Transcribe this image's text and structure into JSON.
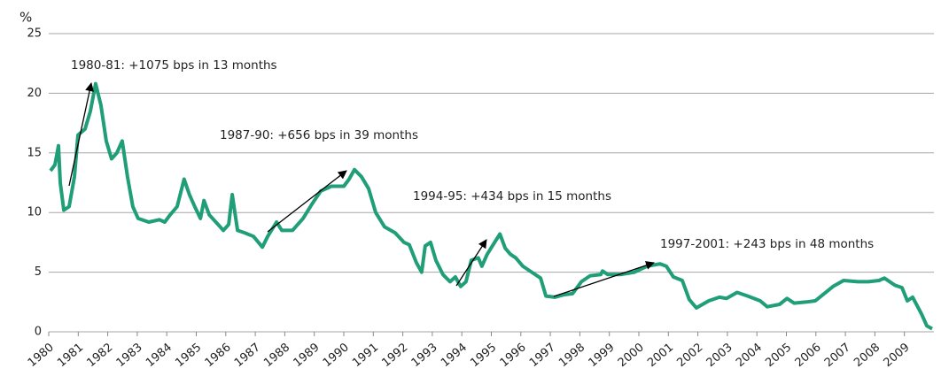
{
  "chart_data": {
    "type": "line",
    "y_label": "%",
    "xlim": [
      1980,
      2010
    ],
    "ylim": [
      0,
      25
    ],
    "xticks": [
      1980,
      1981,
      1982,
      1983,
      1984,
      1985,
      1986,
      1987,
      1988,
      1989,
      1990,
      1991,
      1992,
      1993,
      1994,
      1995,
      1996,
      1997,
      1998,
      1999,
      2000,
      2001,
      2002,
      2003,
      2004,
      2005,
      2006,
      2007,
      2008,
      2009
    ],
    "yticks": [
      0,
      5,
      10,
      15,
      20,
      25
    ],
    "grid": true,
    "color": "#1f9e78",
    "x": [
      1980.06,
      1980.21,
      1980.33,
      1980.39,
      1980.51,
      1980.69,
      1980.87,
      1980.99,
      1981.23,
      1981.41,
      1981.59,
      1981.77,
      1981.95,
      1982.13,
      1982.31,
      1982.49,
      1982.67,
      1982.85,
      1983.03,
      1983.39,
      1983.75,
      1983.93,
      1984.11,
      1984.35,
      1984.59,
      1984.77,
      1984.95,
      1985.14,
      1985.26,
      1985.44,
      1985.74,
      1985.92,
      1986.1,
      1986.22,
      1986.4,
      1986.64,
      1986.94,
      1987.24,
      1987.42,
      1987.72,
      1987.9,
      1988.26,
      1988.62,
      1988.92,
      1989.22,
      1989.58,
      1990.0,
      1990.18,
      1990.36,
      1990.6,
      1990.84,
      1991.08,
      1991.38,
      1991.74,
      1992.04,
      1992.22,
      1992.46,
      1992.64,
      1992.76,
      1992.94,
      1993.12,
      1993.36,
      1993.6,
      1993.78,
      1993.96,
      1994.14,
      1994.32,
      1994.56,
      1994.68,
      1994.86,
      1995.11,
      1995.29,
      1995.47,
      1995.65,
      1995.83,
      1996.07,
      1996.37,
      1996.67,
      1996.85,
      1997.15,
      1997.45,
      1997.75,
      1998.05,
      1998.35,
      1998.71,
      1998.77,
      1998.95,
      1999.37,
      1999.85,
      2000.27,
      2000.72,
      2000.93,
      2001.17,
      2001.47,
      2001.71,
      2001.95,
      2002.37,
      2002.73,
      2002.97,
      2003.33,
      2003.69,
      2004.11,
      2004.35,
      2004.77,
      2005.02,
      2005.26,
      2005.68,
      2005.98,
      2006.28,
      2006.58,
      2006.94,
      2007.42,
      2007.78,
      2008.14,
      2008.32,
      2008.68,
      2008.92,
      2009.1,
      2009.28,
      2009.58,
      2009.76,
      2009.94
    ],
    "values": [
      13.5,
      14,
      15.6,
      12.5,
      10.2,
      10.5,
      13,
      16.5,
      17,
      18.5,
      20.8,
      19,
      16,
      14.5,
      15,
      16,
      13,
      10.5,
      9.5,
      9.2,
      9.4,
      9.2,
      9.8,
      10.5,
      12.8,
      11.5,
      10.5,
      9.5,
      11,
      9.8,
      9.0,
      8.5,
      9.0,
      11.5,
      8.5,
      8.3,
      8.0,
      7.1,
      8,
      9.2,
      8.5,
      8.5,
      9.5,
      10.7,
      11.8,
      12.2,
      12.2,
      12.8,
      13.6,
      13.0,
      12,
      10,
      8.8,
      8.3,
      7.5,
      7.3,
      5.8,
      5.0,
      7.2,
      7.5,
      6,
      4.8,
      4.2,
      4.6,
      3.8,
      4.2,
      6.0,
      6.2,
      5.5,
      6.5,
      7.5,
      8.2,
      7,
      6.5,
      6.2,
      5.5,
      5.0,
      4.5,
      3.0,
      2.9,
      3.1,
      3.2,
      4.2,
      4.7,
      4.8,
      5.1,
      4.8,
      4.8,
      5.0,
      5.5,
      5.7,
      5.5,
      4.6,
      4.3,
      2.7,
      2.0,
      2.6,
      2.9,
      2.8,
      3.3,
      3.0,
      2.6,
      2.1,
      2.3,
      2.8,
      2.4,
      2.5,
      2.6,
      3.2,
      3.8,
      4.3,
      4.2,
      4.2,
      4.3,
      4.5,
      3.9,
      3.7,
      2.6,
      2.9,
      1.5,
      0.5,
      0.25
    ],
    "annotations": [
      "1980-81: +1075 bps in 13 months",
      "1987-90: +656 bps in 39 months",
      "1994-95: +434 bps in 15 months",
      "1997-2001: +243 bps in 48 months"
    ]
  }
}
